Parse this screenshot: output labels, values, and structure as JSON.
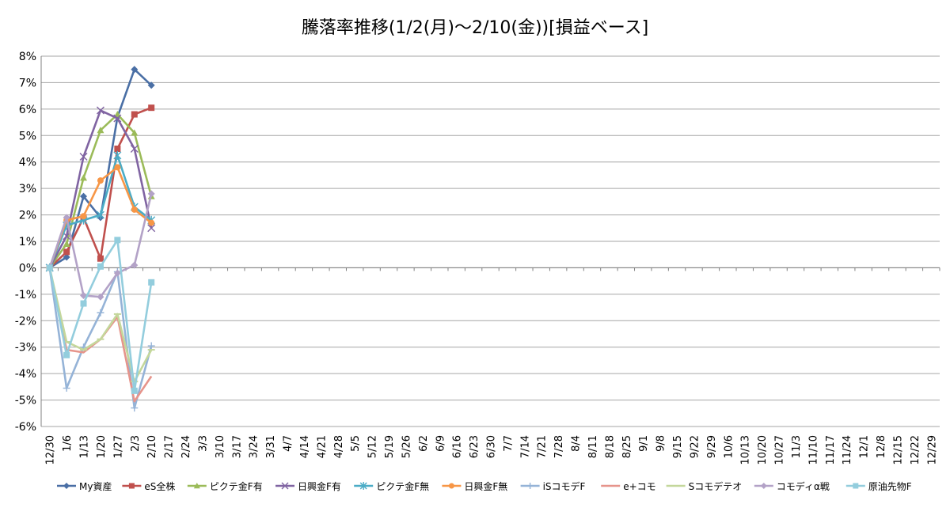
{
  "chart_data": {
    "type": "line",
    "title": "騰落率推移(1/2(月)～2/10(金))[損益ベース]",
    "xlabel": "",
    "ylabel": "",
    "ylim": [
      -0.06,
      0.08
    ],
    "ytick_step": 0.01,
    "grid": "horizontal",
    "legend": "bottom",
    "categories": [
      "12/30",
      "1/6",
      "1/13",
      "1/20",
      "1/27",
      "2/3",
      "2/10",
      "2/17",
      "2/24",
      "3/3",
      "3/10",
      "3/17",
      "3/24",
      "3/31",
      "4/7",
      "4/14",
      "4/21",
      "4/28",
      "5/5",
      "5/12",
      "5/19",
      "5/26",
      "6/2",
      "6/9",
      "6/16",
      "6/23",
      "6/30",
      "7/7",
      "7/14",
      "7/21",
      "7/28",
      "8/4",
      "8/11",
      "8/18",
      "8/25",
      "9/1",
      "9/8",
      "9/15",
      "9/22",
      "9/29",
      "10/6",
      "10/13",
      "10/20",
      "10/27",
      "11/3",
      "11/10",
      "11/17",
      "11/24",
      "12/1",
      "12/8",
      "12/15",
      "12/22",
      "12/29"
    ],
    "x_days": [
      0,
      7,
      14,
      21,
      28,
      35,
      42
    ],
    "series": [
      {
        "name": "My資産",
        "color": "#4a6fa5",
        "marker": "diamond",
        "x": [
          0,
          7,
          14,
          21,
          28,
          35,
          42
        ],
        "values": [
          0.0,
          0.004,
          0.027,
          0.019,
          0.057,
          0.075,
          0.069
        ]
      },
      {
        "name": "eS全株",
        "color": "#c0504d",
        "marker": "square",
        "x": [
          0,
          7,
          14,
          21,
          28,
          35,
          42
        ],
        "values": [
          0.0,
          0.006,
          0.019,
          0.0035,
          0.045,
          0.058,
          0.0605
        ]
      },
      {
        "name": "ピクテ金F有",
        "color": "#9bbb59",
        "marker": "triangle",
        "x": [
          0,
          7,
          14,
          21,
          28,
          35,
          42
        ],
        "values": [
          0.0,
          0.009,
          0.034,
          0.052,
          0.058,
          0.051,
          0.027
        ]
      },
      {
        "name": "日興金F有",
        "color": "#8064a2",
        "marker": "x",
        "x": [
          0,
          7,
          14,
          21,
          28,
          35,
          42
        ],
        "values": [
          0.0,
          0.012,
          0.042,
          0.0595,
          0.0565,
          0.045,
          0.015
        ]
      },
      {
        "name": "ピクテ金F無",
        "color": "#4bacc6",
        "marker": "asterisk",
        "x": [
          0,
          7,
          14,
          21,
          28,
          35,
          42
        ],
        "values": [
          0.0,
          0.016,
          0.018,
          0.02,
          0.0425,
          0.023,
          0.018
        ]
      },
      {
        "name": "日興金F無",
        "color": "#f79646",
        "marker": "circle",
        "x": [
          0,
          7,
          14,
          21,
          28,
          35,
          42
        ],
        "values": [
          0.0,
          0.018,
          0.0195,
          0.033,
          0.038,
          0.022,
          0.017
        ]
      },
      {
        "name": "iSコモデF",
        "color": "#95b3d7",
        "marker": "plus",
        "x": [
          0,
          7,
          14,
          21,
          28,
          35,
          42
        ],
        "values": [
          0.0,
          -0.0455,
          -0.03,
          -0.017,
          -0.0015,
          -0.053,
          -0.0295
        ]
      },
      {
        "name": "e+コモ",
        "color": "#e6948b",
        "marker": "none",
        "x": [
          0,
          7,
          14,
          21,
          28,
          35,
          42
        ],
        "values": [
          0.0,
          -0.031,
          -0.032,
          -0.027,
          -0.0185,
          -0.0505,
          -0.041
        ]
      },
      {
        "name": "Sコモデテオ",
        "color": "#c4d79b",
        "marker": "dash",
        "x": [
          0,
          7,
          14,
          21,
          28,
          35,
          42
        ],
        "values": [
          0.0,
          -0.028,
          -0.031,
          -0.027,
          -0.0175,
          -0.043,
          -0.031
        ]
      },
      {
        "name": "コモディα戦",
        "color": "#b3a2c7",
        "marker": "diamond",
        "x": [
          0,
          7,
          14,
          21,
          28,
          35,
          42
        ],
        "values": [
          0.0,
          0.019,
          -0.0105,
          -0.011,
          -0.002,
          0.001,
          0.028
        ]
      },
      {
        "name": "原油先物F",
        "color": "#93cddd",
        "marker": "square",
        "x": [
          0,
          7,
          14,
          21,
          28,
          35,
          42
        ],
        "values": [
          0.0,
          -0.033,
          -0.0135,
          0.0005,
          0.0105,
          -0.0465,
          -0.0055
        ]
      }
    ]
  }
}
